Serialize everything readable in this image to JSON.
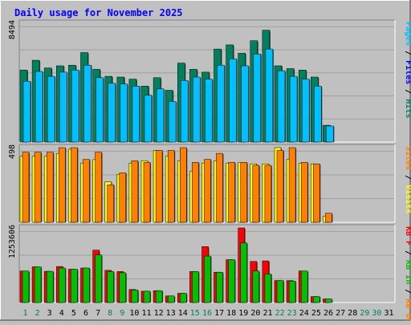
{
  "chart_data": {
    "type": "bar",
    "title": "Daily usage for November 2025",
    "categories": [
      "1",
      "2",
      "3",
      "4",
      "5",
      "6",
      "7",
      "8",
      "9",
      "10",
      "11",
      "12",
      "13",
      "14",
      "15",
      "16",
      "17",
      "18",
      "19",
      "20",
      "21",
      "22",
      "23",
      "24",
      "25",
      "26",
      "27",
      "28",
      "29",
      "30",
      "31"
    ],
    "weekend_days": [
      "1",
      "2",
      "8",
      "9",
      "15",
      "16",
      "22",
      "23",
      "29",
      "30"
    ],
    "panels": [
      {
        "name": "hits-files-pages",
        "ymax_label": "8494",
        "ymax": 8494,
        "series": [
          {
            "name": "Hits",
            "color": "#00805C",
            "values": [
              5150,
              5850,
              5300,
              5450,
              5500,
              6400,
              5200,
              4700,
              4650,
              4500,
              4000,
              4600,
              3700,
              5650,
              5200,
              5000,
              6650,
              6950,
              6350,
              7250,
              8000,
              5450,
              5250,
              5150,
              4650,
              1200,
              0,
              0,
              0,
              0,
              0
            ]
          },
          {
            "name": "Files",
            "color": "#0000FF",
            "values": [
              0,
              0,
              0,
              0,
              0,
              0,
              0,
              0,
              0,
              0,
              0,
              0,
              0,
              0,
              0,
              0,
              0,
              0,
              0,
              0,
              0,
              0,
              0,
              0,
              0,
              0,
              0,
              0,
              0,
              0,
              0
            ]
          },
          {
            "name": "Pages",
            "color": "#00C0FF",
            "values": [
              4350,
              5050,
              4700,
              5000,
              5150,
              5500,
              4600,
              4200,
              4150,
              4000,
              3350,
              3800,
              2900,
              4400,
              4650,
              4500,
              5500,
              5950,
              5450,
              6300,
              6650,
              5100,
              4700,
              4500,
              4000,
              1150,
              0,
              0,
              0,
              0,
              0
            ]
          }
        ]
      },
      {
        "name": "visits-sites",
        "ymax_label": "498",
        "ymax": 498,
        "series": [
          {
            "name": "Visits",
            "color": "#FFFF00",
            "values": [
              440,
              440,
              440,
              460,
              488,
              395,
              418,
              270,
              320,
              395,
              410,
              480,
              440,
              410,
              340,
              395,
              410,
              395,
              400,
              390,
              390,
              500,
              420,
              395,
              390,
              40,
              0,
              0,
              0,
              0,
              0
            ]
          },
          {
            "name": "Sites",
            "color": "#FF8000",
            "values": [
              468,
              468,
              468,
              500,
              520,
              420,
              468,
              250,
              330,
              410,
              400,
              480,
              480,
              510,
              400,
              420,
              460,
              400,
              400,
              380,
              380,
              480,
              500,
              400,
              390,
              60,
              0,
              0,
              0,
              0,
              0
            ]
          }
        ]
      },
      {
        "name": "kbytes",
        "ymax_label": "1253606",
        "ymax": 1253606,
        "series": [
          {
            "name": "KB F",
            "color": "#FF0000",
            "values": [
              530000,
              600000,
              525000,
              605000,
              560000,
              580000,
              880000,
              540000,
              520000,
              220000,
              190000,
              200000,
              110000,
              155000,
              520000,
              940000,
              510000,
              720000,
              1300000,
              690000,
              700000,
              370000,
              370000,
              530000,
              100000,
              60000,
              0,
              0,
              0,
              0,
              0
            ]
          },
          {
            "name": "KB In",
            "color": "#00C000",
            "values": [
              530000,
              600000,
              525000,
              580000,
              560000,
              580000,
              800000,
              520000,
              500000,
              210000,
              190000,
              200000,
              110000,
              155000,
              520000,
              780000,
              510000,
              720000,
              1000000,
              530000,
              480000,
              370000,
              360000,
              530000,
              100000,
              60000,
              0,
              0,
              0,
              0,
              0
            ]
          },
          {
            "name": "KB Out",
            "color": "#FF8000",
            "values": []
          }
        ]
      }
    ],
    "legend_right": [
      {
        "text": "Pages",
        "color": "#00C0FF"
      },
      {
        "text": " / ",
        "color": "#000000"
      },
      {
        "text": "Files",
        "color": "#0000FF"
      },
      {
        "text": " / ",
        "color": "#000000"
      },
      {
        "text": "Hits",
        "color": "#00805C"
      },
      {
        "text": "Sites",
        "color": "#FF8000"
      },
      {
        "text": " / ",
        "color": "#000000"
      },
      {
        "text": "Visits",
        "color": "#FFFF00"
      },
      {
        "text": "KB F",
        "color": "#FF0000"
      },
      {
        "text": " / ",
        "color": "#000000"
      },
      {
        "text": "KB In",
        "color": "#00C000"
      },
      {
        "text": " / ",
        "color": "#000000"
      },
      {
        "text": "KB Out",
        "color": "#FF8000"
      }
    ]
  },
  "colors": {
    "background": "#C0C0C0",
    "plot": "#C0C0C0",
    "title": "#0000FF",
    "grid": "#A0A0A0",
    "weekday_label": "#000000",
    "weekend_label": "#00805C"
  }
}
